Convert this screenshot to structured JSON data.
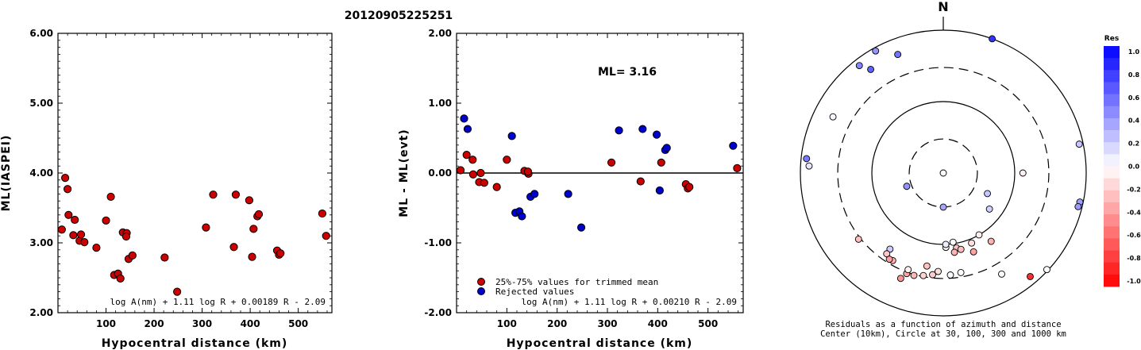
{
  "title": "20120905225251",
  "chart_data": [
    {
      "type": "scatter",
      "xlabel": "Hypocentral distance (km)",
      "ylabel": "ML(IASPEI)",
      "xlim": [
        0,
        570
      ],
      "ylim": [
        2.0,
        6.0
      ],
      "x_ticks": [
        "100",
        "200",
        "300",
        "400",
        "500"
      ],
      "y_ticks": [
        "2.00",
        "3.00",
        "4.00",
        "5.00",
        "6.00"
      ],
      "formula": "log A(nm) + 1.11 log R + 0.00189 R - 2.09",
      "series": [
        {
          "color": "#cc0000",
          "points": [
            [
              8,
              3.19
            ],
            [
              15,
              3.93
            ],
            [
              20,
              3.77
            ],
            [
              22,
              3.4
            ],
            [
              32,
              3.11
            ],
            [
              35,
              3.33
            ],
            [
              45,
              3.03
            ],
            [
              48,
              3.12
            ],
            [
              55,
              3.01
            ],
            [
              80,
              2.93
            ],
            [
              100,
              3.32
            ],
            [
              110,
              3.66
            ],
            [
              117,
              2.54
            ],
            [
              125,
              2.56
            ],
            [
              130,
              2.49
            ],
            [
              135,
              3.15
            ],
            [
              143,
              3.14
            ],
            [
              142,
              3.09
            ],
            [
              147,
              2.77
            ],
            [
              155,
              2.82
            ],
            [
              222,
              2.79
            ],
            [
              248,
              2.3
            ],
            [
              308,
              3.22
            ],
            [
              323,
              3.69
            ],
            [
              366,
              2.94
            ],
            [
              370,
              3.69
            ],
            [
              398,
              3.61
            ],
            [
              404,
              2.8
            ],
            [
              407,
              3.2
            ],
            [
              415,
              3.38
            ],
            [
              418,
              3.41
            ],
            [
              456,
              2.89
            ],
            [
              460,
              2.83
            ],
            [
              463,
              2.85
            ],
            [
              550,
              3.42
            ],
            [
              558,
              3.1
            ]
          ]
        }
      ]
    },
    {
      "type": "scatter",
      "xlabel": "Hypocentral distance (km)",
      "ylabel": "ML - ML(evt)",
      "xlim": [
        0,
        570
      ],
      "ylim": [
        -2.0,
        2.0
      ],
      "x_ticks": [
        "100",
        "200",
        "300",
        "400",
        "500"
      ],
      "y_ticks": [
        "-2.00",
        "-1.00",
        "0.00",
        "1.00",
        "2.00"
      ],
      "annotation": "ML= 3.16",
      "formula": "log A(nm) + 1.11 log R + 0.00210 R - 2.09",
      "legend": [
        {
          "label": "25%-75% values for trimmed mean",
          "color": "#cc0000"
        },
        {
          "label": "Rejected values",
          "color": "#0000cc"
        }
      ],
      "series": [
        {
          "name": "25%-75% values for trimmed mean",
          "color": "#cc0000",
          "points": [
            [
              8,
              0.04
            ],
            [
              20,
              0.26
            ],
            [
              32,
              0.19
            ],
            [
              33,
              -0.02
            ],
            [
              45,
              -0.13
            ],
            [
              48,
              0.0
            ],
            [
              55,
              -0.14
            ],
            [
              80,
              -0.2
            ],
            [
              100,
              0.19
            ],
            [
              135,
              0.03
            ],
            [
              143,
              -0.01
            ],
            [
              142,
              0.02
            ],
            [
              308,
              0.15
            ],
            [
              366,
              -0.12
            ],
            [
              407,
              0.15
            ],
            [
              456,
              -0.16
            ],
            [
              460,
              -0.22
            ],
            [
              463,
              -0.2
            ],
            [
              558,
              0.07
            ]
          ]
        },
        {
          "name": "Rejected values",
          "color": "#0000cc",
          "points": [
            [
              15,
              0.78
            ],
            [
              22,
              0.63
            ],
            [
              110,
              0.53
            ],
            [
              117,
              -0.57
            ],
            [
              125,
              -0.55
            ],
            [
              130,
              -0.62
            ],
            [
              147,
              -0.34
            ],
            [
              155,
              -0.3
            ],
            [
              222,
              -0.3
            ],
            [
              248,
              -0.78
            ],
            [
              323,
              0.61
            ],
            [
              370,
              0.63
            ],
            [
              398,
              0.55
            ],
            [
              404,
              -0.25
            ],
            [
              415,
              0.33
            ],
            [
              418,
              0.36
            ],
            [
              550,
              0.39
            ]
          ]
        }
      ]
    },
    {
      "type": "scatter",
      "subtype": "polar",
      "north_label": "N",
      "caption_line1": "Residuals as a function of azimuth and distance",
      "caption_line2": "Center (10km), Circle at 30, 100, 300 and 1000 km",
      "rings_km": [
        30,
        100,
        300,
        1000
      ],
      "ring_styles": [
        "dashed",
        "solid",
        "dashed",
        "solid"
      ],
      "points": [
        [
          0,
          10,
          0.02
        ],
        [
          180,
          30,
          0.35
        ],
        [
          250,
          35,
          0.42
        ],
        [
          115,
          48,
          0.22
        ],
        [
          128,
          66,
          0.18
        ],
        [
          150,
          100,
          -0.07
        ],
        [
          158,
          114,
          -0.12
        ],
        [
          170,
          116,
          -0.24
        ],
        [
          167,
          125,
          -0.26
        ],
        [
          172,
          132,
          -0.3
        ],
        [
          145,
          147,
          -0.31
        ],
        [
          159,
          152,
          -0.36
        ],
        [
          90,
          130,
          -0.06
        ],
        [
          178,
          110,
          -0.02
        ],
        [
          178,
          100,
          0.07
        ],
        [
          172,
          95,
          -0.01
        ],
        [
          170,
          260,
          0.0
        ],
        [
          176,
          270,
          0.02
        ],
        [
          183,
          240,
          -0.12
        ],
        [
          186,
          270,
          -0.2
        ],
        [
          191,
          290,
          -0.17
        ],
        [
          196,
          310,
          -0.28
        ],
        [
          200,
          315,
          -0.35
        ],
        [
          202,
          390,
          -0.42
        ],
        [
          200,
          275,
          -0.06
        ],
        [
          215,
          200,
          0.2
        ],
        [
          232,
          320,
          -0.25
        ],
        [
          215,
          240,
          -0.22
        ],
        [
          210,
          260,
          -0.3
        ],
        [
          212,
          265,
          -0.38
        ],
        [
          190,
          210,
          -0.24
        ],
        [
          150,
          430,
          0.02
        ],
        [
          140,
          780,
          -0.82
        ],
        [
          273,
          760,
          0.1
        ],
        [
          276,
          840,
          0.52
        ],
        [
          297,
          540,
          0.03
        ],
        [
          322,
          810,
          0.48
        ],
        [
          325,
          590,
          0.62
        ],
        [
          331,
          900,
          0.42
        ],
        [
          339,
          600,
          0.55
        ],
        [
          20,
          1000,
          0.8
        ],
        [
          78,
          880,
          0.22
        ],
        [
          102,
          900,
          0.38
        ],
        [
          104,
          880,
          0.4
        ],
        [
          133,
          960,
          0.02
        ]
      ]
    }
  ],
  "colorbar": {
    "title": "Res",
    "labels": [
      "1.0",
      "0.8",
      "0.6",
      "0.4",
      "0.2",
      "0.0",
      "-0.2",
      "-0.4",
      "-0.6",
      "-0.8",
      "-1.0"
    ]
  }
}
